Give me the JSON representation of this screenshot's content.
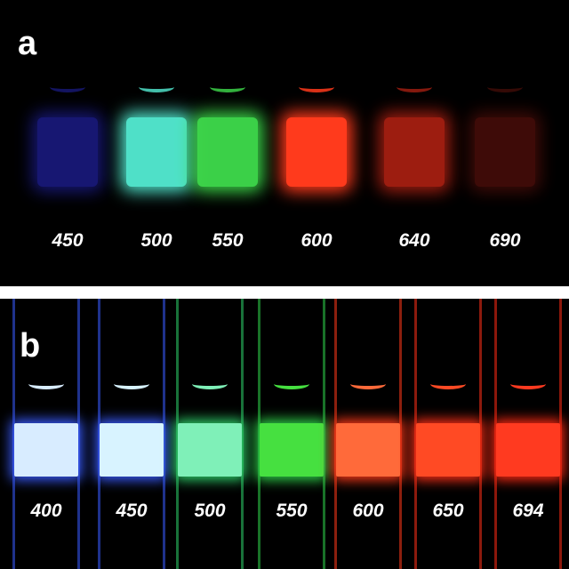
{
  "panel_a": {
    "letter": "a",
    "vials": [
      {
        "label": "450",
        "color": "#2a2bd0",
        "glow": 0.55
      },
      {
        "label": "500",
        "color": "#4fe0c8",
        "glow": 1.0
      },
      {
        "label": "550",
        "color": "#3fdc4c",
        "glow": 0.95
      },
      {
        "label": "600",
        "color": "#ff3a1c",
        "glow": 1.0
      },
      {
        "label": "640",
        "color": "#e02a18",
        "glow": 0.7
      },
      {
        "label": "690",
        "color": "#8a1a12",
        "glow": 0.45
      }
    ]
  },
  "panel_b": {
    "letter": "b",
    "vials": [
      {
        "label": "400",
        "color": "#d8ecff",
        "wall": "#3a5cff"
      },
      {
        "label": "450",
        "color": "#d8f3ff",
        "wall": "#3a5cff"
      },
      {
        "label": "500",
        "color": "#7ff0b8",
        "wall": "#2ed06a"
      },
      {
        "label": "550",
        "color": "#46e040",
        "wall": "#2ed04a"
      },
      {
        "label": "600",
        "color": "#ff6a3a",
        "wall": "#ff3a1a"
      },
      {
        "label": "650",
        "color": "#ff4a24",
        "wall": "#ff3018"
      },
      {
        "label": "694",
        "color": "#ff3a20",
        "wall": "#ff2a14"
      }
    ]
  }
}
